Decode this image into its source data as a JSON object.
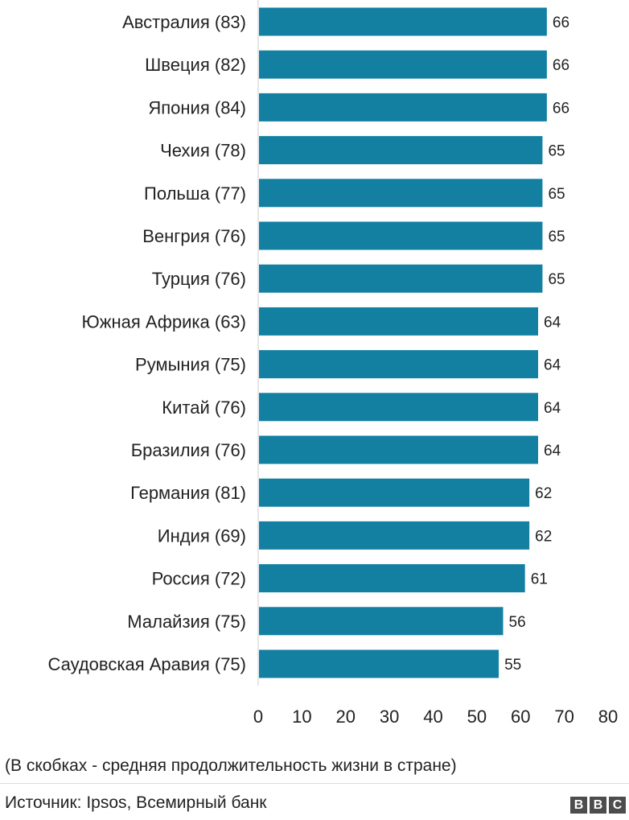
{
  "chart_data": {
    "type": "bar",
    "orientation": "horizontal",
    "categories": [
      "Австралия (83)",
      "Швеция (82)",
      "Япония (84)",
      "Чехия (78)",
      "Польша (77)",
      "Венгрия (76)",
      "Турция (76)",
      "Южная Африка (63)",
      "Румыния (75)",
      "Китай (76)",
      "Бразилия (76)",
      "Германия (81)",
      "Индия (69)",
      "Россия (72)",
      "Малайзия (75)",
      "Саудовская Аравия (75)"
    ],
    "values": [
      66,
      66,
      66,
      65,
      65,
      65,
      65,
      64,
      64,
      64,
      64,
      62,
      62,
      61,
      56,
      55
    ],
    "xlim": [
      0,
      80
    ],
    "xticks": [
      0,
      10,
      20,
      30,
      40,
      50,
      60,
      70,
      80
    ],
    "bar_color": "#1380A1",
    "data_labels": true,
    "grid": false
  },
  "footer": {
    "note": "(В скобках - средняя продолжительность жизни в стране)",
    "source": "Источник: Ipsos, Всемирный банк",
    "logo_letters": [
      "B",
      "B",
      "C"
    ]
  }
}
